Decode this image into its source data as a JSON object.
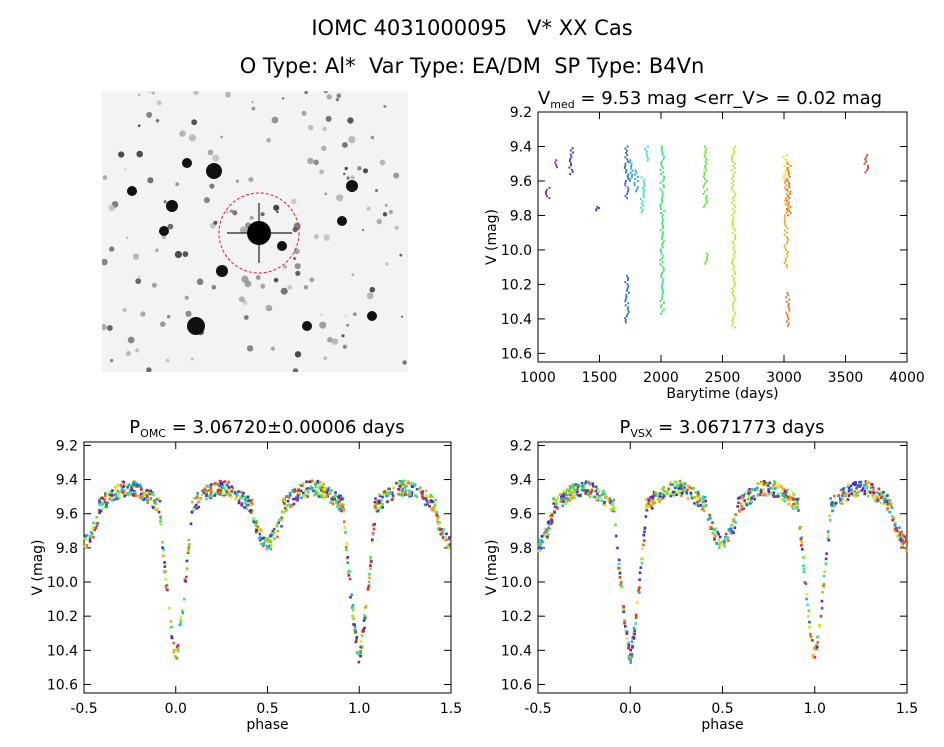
{
  "header": {
    "title_line1": "IOMC 4031000095   V* XX Cas",
    "title_line2": "O Type: Al*  Var Type: EA/DM  SP Type: B4Vn"
  },
  "colors": {
    "rainbow": [
      "#7a1fb3",
      "#3c2fd0",
      "#1f63d6",
      "#1aa5e6",
      "#33e0c0",
      "#2fe86a",
      "#57ea2a",
      "#b6ec1f",
      "#f0e01c",
      "#f6a51a",
      "#ee6a1a",
      "#e0361b"
    ],
    "target_circle": "#e0202a"
  },
  "chart_data": [
    {
      "type": "scatter",
      "panel": "lightcurve",
      "title_parts": {
        "main": "V",
        "sub": "med",
        "rest": " = 9.53 mag <err_V> = 0.02 mag"
      },
      "xlabel": "Barytime (days)",
      "ylabel": "V (mag)",
      "xlim": [
        1000,
        4000
      ],
      "ylim": [
        9.2,
        10.65
      ],
      "y_inverted": true,
      "xticks": [
        "1000",
        "1500",
        "2000",
        "2500",
        "3000",
        "3500",
        "4000"
      ],
      "yticks": [
        "9.2",
        "9.4",
        "9.6",
        "9.8",
        "10.0",
        "10.2",
        "10.4",
        "10.6"
      ],
      "clusters": [
        {
          "x": 1080,
          "y0": 9.64,
          "y1": 9.7,
          "c": 0
        },
        {
          "x": 1150,
          "y0": 9.48,
          "y1": 9.52,
          "c": 0
        },
        {
          "x": 1270,
          "y0": 9.41,
          "y1": 9.56,
          "c": 1
        },
        {
          "x": 1480,
          "y0": 9.75,
          "y1": 9.77,
          "c": 1
        },
        {
          "x": 1720,
          "y0": 9.4,
          "y1": 9.7,
          "c": 2
        },
        {
          "x": 1725,
          "y0": 10.15,
          "y1": 10.42,
          "c": 2
        },
        {
          "x": 1760,
          "y0": 9.48,
          "y1": 9.6,
          "c": 3
        },
        {
          "x": 1800,
          "y0": 9.54,
          "y1": 9.66,
          "c": 3
        },
        {
          "x": 1850,
          "y0": 9.58,
          "y1": 9.78,
          "c": 4
        },
        {
          "x": 1880,
          "y0": 9.4,
          "y1": 9.48,
          "c": 4
        },
        {
          "x": 2010,
          "y0": 9.4,
          "y1": 10.37,
          "c": 5
        },
        {
          "x": 2360,
          "y0": 9.4,
          "y1": 9.75,
          "c": 6
        },
        {
          "x": 2370,
          "y0": 10.02,
          "y1": 10.08,
          "c": 6
        },
        {
          "x": 2590,
          "y0": 9.4,
          "y1": 10.45,
          "c": 7
        },
        {
          "x": 3010,
          "y0": 9.45,
          "y1": 9.6,
          "c": 8
        },
        {
          "x": 3020,
          "y0": 9.6,
          "y1": 10.1,
          "c": 9
        },
        {
          "x": 3040,
          "y0": 9.5,
          "y1": 9.8,
          "c": 10
        },
        {
          "x": 3030,
          "y0": 10.25,
          "y1": 10.44,
          "c": 10
        },
        {
          "x": 3670,
          "y0": 9.45,
          "y1": 9.55,
          "c": 11
        }
      ]
    },
    {
      "type": "scatter",
      "panel": "phase_omc",
      "title_parts": {
        "main": "P",
        "sub": "OMC",
        "rest": " = 3.06720±0.00006 days"
      },
      "xlabel": "phase",
      "ylabel": "V (mag)",
      "xlim": [
        -0.5,
        1.5
      ],
      "ylim": [
        9.18,
        10.65
      ],
      "y_inverted": true,
      "xticks": [
        "-0.5",
        "0.0",
        "0.5",
        "1.0",
        "1.5"
      ],
      "yticks": [
        "9.2",
        "9.4",
        "9.6",
        "9.8",
        "10.0",
        "10.2",
        "10.4",
        "10.6"
      ],
      "period_days": 3.0672,
      "primary_min_mag": 10.44,
      "secondary_min_mag": 9.78,
      "max_mag": 9.45
    },
    {
      "type": "scatter",
      "panel": "phase_vsx",
      "title_parts": {
        "main": "P",
        "sub": "VSX",
        "rest": " = 3.0671773 days"
      },
      "xlabel": "phase",
      "ylabel": "V (mag)",
      "xlim": [
        -0.5,
        1.5
      ],
      "ylim": [
        9.18,
        10.65
      ],
      "y_inverted": true,
      "xticks": [
        "-0.5",
        "0.0",
        "0.5",
        "1.0",
        "1.5"
      ],
      "yticks": [
        "9.2",
        "9.4",
        "9.6",
        "9.8",
        "10.0",
        "10.2",
        "10.4",
        "10.6"
      ],
      "period_days": 3.0671773,
      "primary_min_mag": 10.44,
      "secondary_min_mag": 9.78,
      "max_mag": 9.45
    }
  ]
}
